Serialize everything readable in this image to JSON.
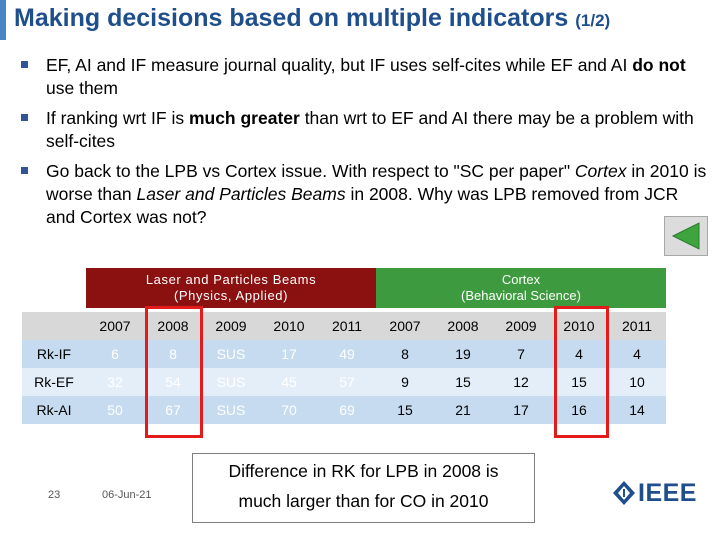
{
  "slide": {
    "title": "Making decisions based on multiple indicators",
    "title_suffix": "(1/2)",
    "bullets": [
      {
        "parts": [
          {
            "text": "EF, AI and IF measure journal quality, but IF uses self-cites while EF and AI ",
            "style": "normal"
          },
          {
            "text": "do not",
            "style": "bold"
          },
          {
            "text": " use them",
            "style": "normal"
          }
        ]
      },
      {
        "parts": [
          {
            "text": "If ranking wrt IF is ",
            "style": "normal"
          },
          {
            "text": "much greater",
            "style": "bold"
          },
          {
            "text": " than wrt to EF and AI there may be a problem with self-cites",
            "style": "normal"
          }
        ]
      },
      {
        "parts": [
          {
            "text": "Go back to the LPB vs Cortex issue. With respect to \"SC per paper\" ",
            "style": "normal"
          },
          {
            "text": "Cortex",
            "style": "italic"
          },
          {
            "text": " in 2010 is worse than ",
            "style": "normal"
          },
          {
            "text": "Laser and Particles Beams",
            "style": "italic"
          },
          {
            "text": " in 2008. Why was LPB removed from JCR and Cortex was not?",
            "style": "normal"
          }
        ]
      }
    ]
  },
  "table": {
    "group_lpb": [
      "Laser and Particles Beams",
      "(Physics, Applied)"
    ],
    "group_cortex": [
      "Cortex",
      "(Behavioral Science)"
    ],
    "years_lpb": [
      "2007",
      "2008",
      "2009",
      "2010",
      "2011"
    ],
    "years_cortex": [
      "2007",
      "2008",
      "2009",
      "2010",
      "2011"
    ],
    "rows": [
      {
        "label": "Rk-IF",
        "lpb": [
          "6",
          "8",
          "SUS",
          "17",
          "49"
        ],
        "cortex": [
          "8",
          "19",
          "7",
          "4",
          "4"
        ]
      },
      {
        "label": "Rk-EF",
        "lpb": [
          "32",
          "54",
          "SUS",
          "45",
          "57"
        ],
        "cortex": [
          "9",
          "15",
          "12",
          "15",
          "10"
        ]
      },
      {
        "label": "Rk-AI",
        "lpb": [
          "50",
          "67",
          "SUS",
          "70",
          "69"
        ],
        "cortex": [
          "15",
          "21",
          "17",
          "16",
          "14"
        ]
      }
    ]
  },
  "callout": [
    "Difference in RK for LPB in 2008  is",
    "much larger than for CO in 2010"
  ],
  "footer": {
    "page": "23",
    "date": "06-Jun-21"
  },
  "logo": {
    "text": "IEEE"
  },
  "nav": {
    "icon": "back-arrow-icon"
  },
  "colors": {
    "title": "#1f4e8c",
    "lpb_header": "#8b1010",
    "cortex_header": "#3e9a3e",
    "row_dark": "#c6dbef",
    "row_light": "#e4eef8",
    "highlight": "#e31b1b",
    "nav_arrow": "#3ea53e"
  }
}
